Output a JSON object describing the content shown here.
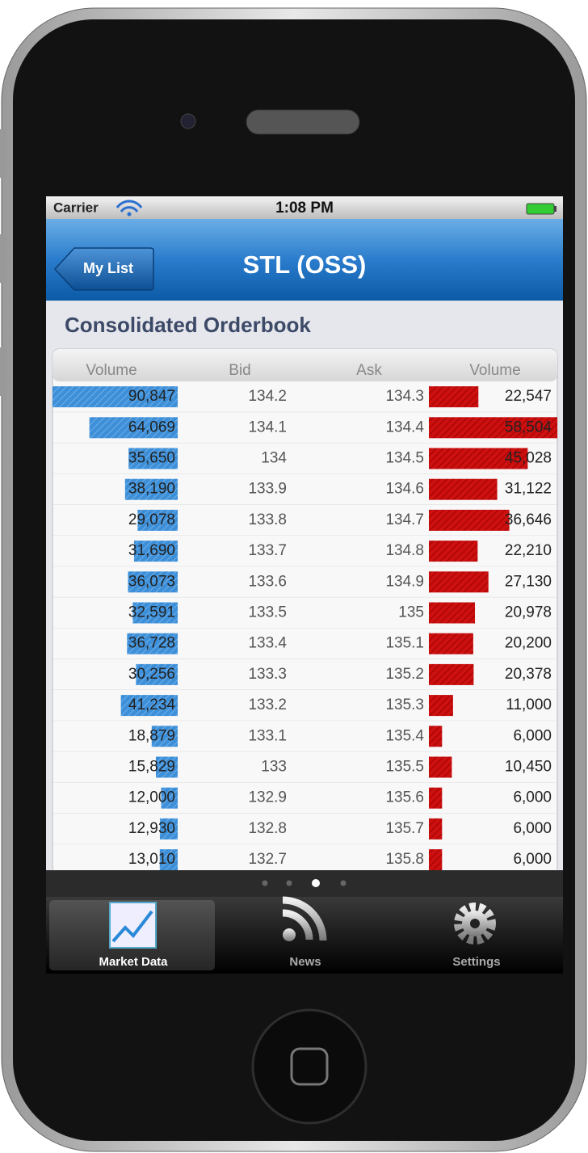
{
  "status_bar": {
    "carrier": "Carrier",
    "time": "1:08 PM"
  },
  "nav_bar": {
    "back_button": "My List",
    "title": "STL (OSS)"
  },
  "section_title": "Consolidated Orderbook",
  "orderbook": {
    "columns": [
      "Volume",
      "Bid",
      "Ask",
      "Volume"
    ],
    "rows": [
      {
        "bid_volume": {
          "value": 90847,
          "label": "90,847"
        },
        "bid": 134.2,
        "ask": 134.3,
        "ask_volume": {
          "value": 22547,
          "label": "22,547"
        }
      },
      {
        "bid_volume": {
          "value": 64069,
          "label": "64,069"
        },
        "bid": 134.1,
        "ask": 134.4,
        "ask_volume": {
          "value": 58504,
          "label": "58,504"
        }
      },
      {
        "bid_volume": {
          "value": 35650,
          "label": "35,650"
        },
        "bid": 134,
        "ask": 134.5,
        "ask_volume": {
          "value": 45028,
          "label": "45,028"
        }
      },
      {
        "bid_volume": {
          "value": 38190,
          "label": "38,190"
        },
        "bid": 133.9,
        "ask": 134.6,
        "ask_volume": {
          "value": 31122,
          "label": "31,122"
        }
      },
      {
        "bid_volume": {
          "value": 29078,
          "label": "29,078"
        },
        "bid": 133.8,
        "ask": 134.7,
        "ask_volume": {
          "value": 36646,
          "label": "36,646"
        }
      },
      {
        "bid_volume": {
          "value": 31690,
          "label": "31,690"
        },
        "bid": 133.7,
        "ask": 134.8,
        "ask_volume": {
          "value": 22210,
          "label": "22,210"
        }
      },
      {
        "bid_volume": {
          "value": 36073,
          "label": "36,073"
        },
        "bid": 133.6,
        "ask": 134.9,
        "ask_volume": {
          "value": 27130,
          "label": "27,130"
        }
      },
      {
        "bid_volume": {
          "value": 32591,
          "label": "32,591"
        },
        "bid": 133.5,
        "ask": 135,
        "ask_volume": {
          "value": 20978,
          "label": "20,978"
        }
      },
      {
        "bid_volume": {
          "value": 36728,
          "label": "36,728"
        },
        "bid": 133.4,
        "ask": 135.1,
        "ask_volume": {
          "value": 20200,
          "label": "20,200"
        }
      },
      {
        "bid_volume": {
          "value": 30256,
          "label": "30,256"
        },
        "bid": 133.3,
        "ask": 135.2,
        "ask_volume": {
          "value": 20378,
          "label": "20,378"
        }
      },
      {
        "bid_volume": {
          "value": 41234,
          "label": "41,234"
        },
        "bid": 133.2,
        "ask": 135.3,
        "ask_volume": {
          "value": 11000,
          "label": "11,000"
        }
      },
      {
        "bid_volume": {
          "value": 18879,
          "label": "18,879"
        },
        "bid": 133.1,
        "ask": 135.4,
        "ask_volume": {
          "value": 6000,
          "label": "6,000"
        }
      },
      {
        "bid_volume": {
          "value": 15829,
          "label": "15,829"
        },
        "bid": 133,
        "ask": 135.5,
        "ask_volume": {
          "value": 10450,
          "label": "10,450"
        }
      },
      {
        "bid_volume": {
          "value": 12000,
          "label": "12,000"
        },
        "bid": 132.9,
        "ask": 135.6,
        "ask_volume": {
          "value": 6000,
          "label": "6,000"
        }
      },
      {
        "bid_volume": {
          "value": 12930,
          "label": "12,930"
        },
        "bid": 132.8,
        "ask": 135.7,
        "ask_volume": {
          "value": 6000,
          "label": "6,000"
        }
      },
      {
        "bid_volume": {
          "value": 13010,
          "label": "13,010"
        },
        "bid": 132.7,
        "ask": 135.8,
        "ask_volume": {
          "value": 6000,
          "label": "6,000"
        }
      }
    ]
  },
  "tab_bar": {
    "items": [
      "Market Data",
      "News",
      "Settings"
    ]
  }
}
